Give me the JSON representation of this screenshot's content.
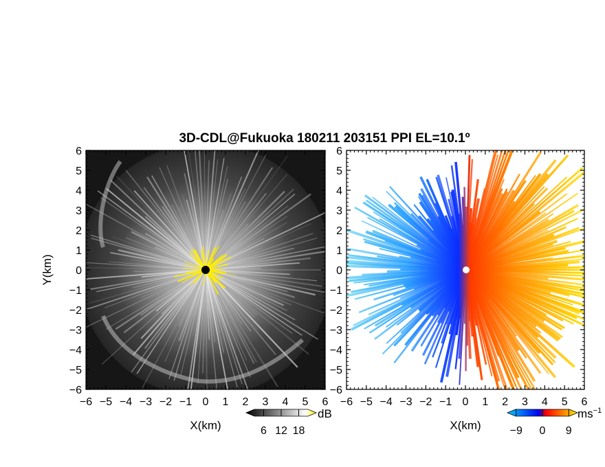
{
  "title": "3D-CDL@Fukuoka 180211 203151 PPI EL=10.1º",
  "chart_data": [
    {
      "type": "heatmap",
      "name": "reflectivity-ppi",
      "xlabel": "X(km)",
      "ylabel": "Y(km)",
      "xlim": [
        -6,
        6
      ],
      "ylim": [
        -6,
        6
      ],
      "xticks": [
        "−6",
        "−5",
        "−4",
        "−3",
        "−2",
        "−1",
        "0",
        "1",
        "2",
        "3",
        "4",
        "5",
        "6"
      ],
      "yticks": [
        "−6",
        "−5",
        "−4",
        "−3",
        "−2",
        "−1",
        "0",
        "1",
        "2",
        "3",
        "4",
        "5",
        "6"
      ],
      "grid": false,
      "colorbar": {
        "unit": "dB",
        "ticks": [
          "6",
          "12",
          "18"
        ],
        "tick_values": [
          6,
          12,
          18
        ],
        "range": [
          0,
          24
        ],
        "colors": [
          "#000000",
          "#ffffff",
          "#ffee00"
        ]
      },
      "marker": {
        "x": 0,
        "y": 0,
        "color": "#000000"
      }
    },
    {
      "type": "heatmap",
      "name": "doppler-velocity-ppi",
      "xlabel": "X(km)",
      "xlim": [
        -6,
        6
      ],
      "ylim": [
        -6,
        6
      ],
      "xticks": [
        "−6",
        "−5",
        "−4",
        "−3",
        "−2",
        "−1",
        "0",
        "1",
        "2",
        "3",
        "4",
        "5",
        "6"
      ],
      "yticks": [
        "6",
        "5",
        "4",
        "3",
        "2",
        "1",
        "0",
        "−1",
        "−2",
        "−3",
        "−4",
        "−5",
        "−6"
      ],
      "grid": false,
      "colorbar": {
        "unit": "ms",
        "unit_exp": "−1",
        "ticks": [
          "−9",
          "0",
          "9"
        ],
        "tick_values": [
          -9,
          0,
          9
        ],
        "range": [
          -12,
          12
        ],
        "colors": [
          "#00ccff",
          "#0000ee",
          "#ff0000",
          "#ffee00"
        ]
      },
      "marker": {
        "x": 0,
        "y": 0,
        "color": "#ffffff"
      }
    }
  ]
}
